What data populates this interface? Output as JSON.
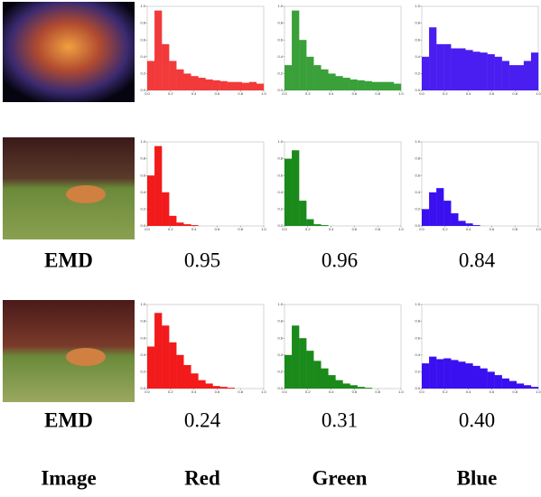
{
  "histogram_ticks": {
    "x": [
      {
        "value": 0,
        "label": "0.0"
      },
      {
        "value": 0.2,
        "label": "0.2"
      },
      {
        "value": 0.4,
        "label": "0.4"
      },
      {
        "value": 0.6,
        "label": "0.6"
      },
      {
        "value": 0.8,
        "label": "0.8"
      },
      {
        "value": 1,
        "label": "1.0"
      }
    ],
    "y": [
      {
        "value": 0,
        "label": "0.0"
      },
      {
        "value": 0.2,
        "label": "0.2"
      },
      {
        "value": 0.4,
        "label": "0.4"
      },
      {
        "value": 0.6,
        "label": "0.6"
      },
      {
        "value": 0.8,
        "label": "0.8"
      },
      {
        "value": 1,
        "label": "1.0"
      }
    ]
  },
  "histograms": [
    [
      {
        "color": "#f23a3a",
        "values": [
          0.35,
          0.95,
          0.55,
          0.35,
          0.25,
          0.2,
          0.17,
          0.15,
          0.13,
          0.12,
          0.11,
          0.1,
          0.1,
          0.09,
          0.1,
          0.08
        ]
      },
      {
        "color": "#3aa03a",
        "values": [
          0.3,
          0.95,
          0.6,
          0.4,
          0.3,
          0.25,
          0.2,
          0.17,
          0.15,
          0.13,
          0.12,
          0.11,
          0.1,
          0.1,
          0.1,
          0.08
        ]
      },
      {
        "color": "#4a1ef0",
        "values": [
          0.4,
          0.75,
          0.55,
          0.55,
          0.5,
          0.5,
          0.48,
          0.46,
          0.45,
          0.43,
          0.4,
          0.35,
          0.3,
          0.3,
          0.35,
          0.45
        ]
      }
    ],
    [
      {
        "color": "#f21a1a",
        "values": [
          0.6,
          0.95,
          0.4,
          0.12,
          0.04,
          0.02,
          0.01,
          0,
          0,
          0,
          0,
          0,
          0,
          0,
          0,
          0
        ]
      },
      {
        "color": "#1a8a1a",
        "values": [
          0.8,
          0.9,
          0.3,
          0.08,
          0.02,
          0.01,
          0,
          0,
          0,
          0,
          0,
          0,
          0,
          0,
          0,
          0
        ]
      },
      {
        "color": "#3a10f0",
        "values": [
          0.2,
          0.4,
          0.45,
          0.3,
          0.15,
          0.06,
          0.03,
          0.01,
          0,
          0,
          0,
          0,
          0,
          0,
          0,
          0
        ]
      }
    ],
    [
      {
        "color": "#f21a1a",
        "values": [
          0.5,
          0.9,
          0.75,
          0.55,
          0.4,
          0.28,
          0.18,
          0.1,
          0.06,
          0.03,
          0.02,
          0.01,
          0,
          0,
          0,
          0
        ]
      },
      {
        "color": "#1a8a1a",
        "values": [
          0.4,
          0.75,
          0.6,
          0.45,
          0.33,
          0.24,
          0.16,
          0.1,
          0.06,
          0.04,
          0.02,
          0.01,
          0,
          0,
          0,
          0
        ]
      },
      {
        "color": "#3a10f0",
        "values": [
          0.3,
          0.38,
          0.35,
          0.36,
          0.34,
          0.32,
          0.3,
          0.27,
          0.24,
          0.2,
          0.16,
          0.12,
          0.09,
          0.06,
          0.04,
          0.02
        ]
      }
    ]
  ],
  "emd_rows": [
    {
      "label": "EMD",
      "values": [
        "0.95",
        "0.96",
        "0.84"
      ]
    },
    {
      "label": "EMD",
      "values": [
        "0.24",
        "0.31",
        "0.40"
      ]
    }
  ],
  "column_headers": [
    "Image",
    "Red",
    "Green",
    "Blue"
  ]
}
